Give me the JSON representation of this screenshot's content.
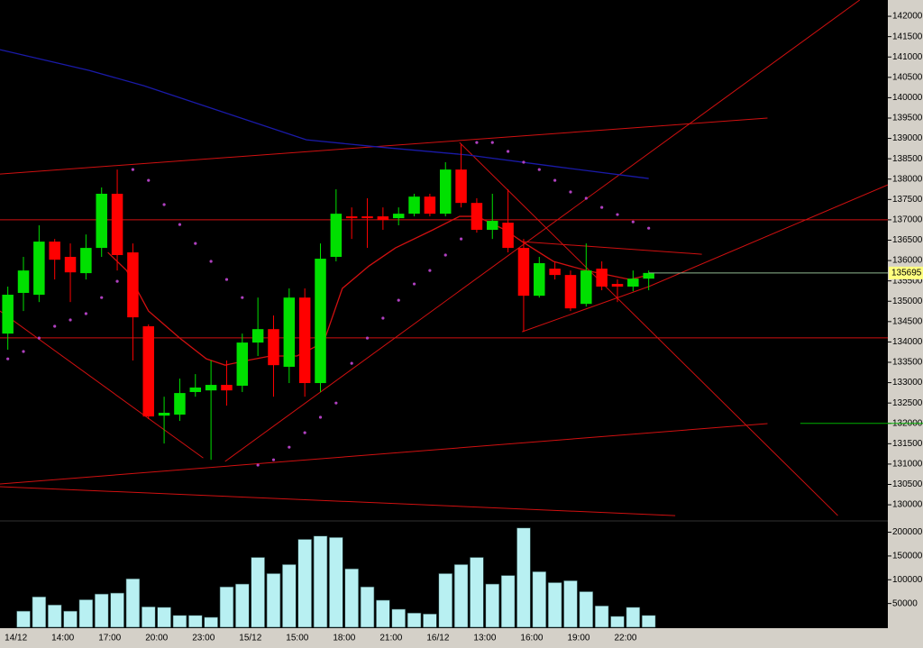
{
  "chart_data": [
    {
      "type": "candlestick",
      "categories": [
        "14/12",
        null,
        null,
        "14:00",
        null,
        null,
        "17:00",
        null,
        null,
        "20:00",
        null,
        null,
        "23:00",
        null,
        null,
        "15/12",
        null,
        null,
        "15:00",
        null,
        null,
        "18:00",
        null,
        null,
        "21:00",
        null,
        null,
        "16/12",
        null,
        null,
        "13:00",
        null,
        null,
        "16:00",
        null,
        null,
        "19:00",
        null,
        null,
        "22:00",
        null,
        null
      ],
      "open": [
        134205,
        135205,
        135160,
        136465,
        136090,
        135690,
        136310,
        137640,
        136200,
        134385,
        132190,
        132215,
        132770,
        132810,
        132945,
        132925,
        133985,
        134315,
        133390,
        135090,
        132990,
        136090,
        137085,
        137085,
        137085,
        137040,
        137150,
        137570,
        137150,
        138235,
        137415,
        136755,
        136930,
        136310,
        135135,
        135800,
        135645,
        134935,
        135800,
        135425,
        135360,
        135555
      ],
      "high": [
        135360,
        136090,
        136865,
        136530,
        136420,
        136640,
        137795,
        138235,
        136420,
        134430,
        132655,
        133100,
        133210,
        133545,
        133545,
        134205,
        135090,
        134650,
        135315,
        135315,
        136420,
        137750,
        137305,
        137530,
        137305,
        137305,
        137640,
        137640,
        138415,
        138855,
        137530,
        137640,
        137750,
        136530,
        136090,
        135980,
        135755,
        136420,
        135980,
        135535,
        135755,
        135755
      ],
      "low": [
        133810,
        134760,
        134980,
        135535,
        134980,
        135535,
        136090,
        135755,
        133545,
        132105,
        131505,
        132060,
        132655,
        131105,
        132435,
        132770,
        133655,
        132655,
        132990,
        132655,
        132770,
        135980,
        136530,
        136310,
        136755,
        136865,
        137085,
        137085,
        137085,
        137305,
        136685,
        136530,
        136200,
        134250,
        135090,
        135535,
        134760,
        134870,
        135270,
        134980,
        135245,
        135270
      ],
      "close": [
        135160,
        135755,
        136465,
        136020,
        135710,
        136310,
        137640,
        136135,
        134605,
        132170,
        132260,
        132745,
        132880,
        132945,
        132810,
        133985,
        134315,
        133430,
        135090,
        132990,
        136045,
        137150,
        137040,
        137040,
        136995,
        137150,
        137570,
        137150,
        138235,
        137415,
        136755,
        136975,
        136310,
        135135,
        135935,
        135645,
        134825,
        135755,
        135360,
        135360,
        135555,
        135695
      ],
      "up_color": "#00e000",
      "down_color": "#ff0000",
      "xlim": [
        -0.5,
        56.3
      ],
      "ylim": [
        129670,
        142400
      ],
      "yticks": [
        142000,
        141500,
        141000,
        140500,
        140000,
        139500,
        139000,
        138500,
        138000,
        137500,
        137000,
        136500,
        136000,
        135500,
        135000,
        134500,
        134000,
        133500,
        133000,
        132500,
        132000,
        131500,
        131000,
        130500,
        130000
      ],
      "last_price": 135695,
      "moving_averages": [
        {
          "color": "#1a1aa8",
          "x": [
            -0.5,
            5.2,
            8.7,
            13.9,
            19.1,
            23.7,
            29.5,
            35.2,
            41
          ],
          "values": [
            141180,
            140670,
            140295,
            139630,
            138965,
            138790,
            138590,
            138300,
            138015
          ]
        },
        {
          "color": "#d01010",
          "x": [
            6.4,
            7.6,
            9,
            11,
            12.7,
            13.9,
            15.3,
            16.8,
            18.5,
            20.2,
            21.4,
            23.1,
            24.8,
            27.2,
            28.9,
            30,
            31.8,
            32.9,
            34.9,
            37,
            39.8,
            41
          ],
          "values": [
            136200,
            135755,
            134760,
            134095,
            133585,
            133430,
            133545,
            133655,
            133655,
            133985,
            135315,
            135865,
            136310,
            136755,
            137085,
            137085,
            136755,
            136465,
            135980,
            135755,
            135535,
            135645
          ]
        }
      ],
      "sar": {
        "color": "#b040c0",
        "values": [
          133585,
          133765,
          134095,
          134385,
          134540,
          134695,
          135090,
          135490,
          138235,
          137970,
          137375,
          136885,
          136420,
          135980,
          135535,
          135090,
          130975,
          131105,
          131415,
          131770,
          132150,
          132500,
          133475,
          134095,
          134585,
          135025,
          135425,
          135755,
          136135,
          136530,
          138900,
          138900,
          138680,
          138415,
          138235,
          137970,
          137685,
          137530,
          137305,
          137130,
          136950,
          136795
        ]
      },
      "levels": [
        {
          "value": 137000,
          "color": "#d01010"
        },
        {
          "value": 134100,
          "color": "#d01010"
        },
        {
          "value": 132000,
          "x": 50.7,
          "color": "#00b000"
        }
      ],
      "trendline_color": "#d01010",
      "trendlines": [
        {
          "x": [
            -0.5,
            48.6
          ],
          "values": [
            138125,
            139500
          ]
        },
        {
          "x": [
            -0.5,
            48.6
          ],
          "values": [
            130510,
            131995
          ]
        },
        {
          "x": [
            -0.5,
            42.7
          ],
          "values": [
            130445,
            129735
          ]
        },
        {
          "x": [
            13.9,
            54.5
          ],
          "values": [
            131065,
            142400
          ]
        },
        {
          "x": [
            41,
            56.3
          ],
          "values": [
            135360,
            137860
          ]
        },
        {
          "x": [
            32.9,
            41
          ],
          "values": [
            134250,
            135360
          ]
        },
        {
          "x": [
            28.9,
            53.1
          ],
          "values": [
            138900,
            129735
          ]
        },
        {
          "x": [
            -0.5,
            12.5
          ],
          "values": [
            134760,
            131150
          ]
        },
        {
          "x": [
            32.9,
            44.4
          ],
          "values": [
            136465,
            136155
          ]
        }
      ]
    },
    {
      "type": "bar",
      "values": [
        null,
        34000,
        64000,
        47000,
        34000,
        58000,
        70000,
        72000,
        102000,
        43000,
        42000,
        25000,
        25000,
        21000,
        85000,
        91000,
        147000,
        113000,
        132000,
        185000,
        192000,
        189000,
        123000,
        85000,
        57000,
        38000,
        30000,
        28000,
        113000,
        132000,
        147000,
        91000,
        109000,
        209000,
        117000,
        94000,
        98000,
        75000,
        45000,
        23000,
        42000,
        25000
      ],
      "color": "#b8f0f2",
      "ylim": [
        0,
        220000
      ],
      "yticks": [
        200000,
        150000,
        100000,
        50000
      ]
    }
  ]
}
